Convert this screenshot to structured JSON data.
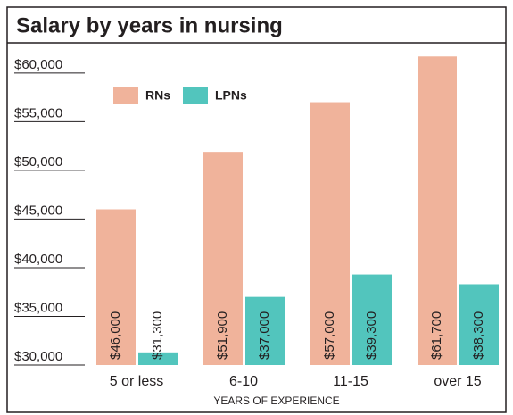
{
  "chart_data": {
    "type": "bar",
    "title": "Salary by years in nursing",
    "x_label": "YEARS OF EXPERIENCE",
    "categories": [
      "5 or less",
      "6-10",
      "11-15",
      "over 15"
    ],
    "series": [
      {
        "name": "RNs",
        "color": "#f0b39b",
        "values": [
          46000,
          51900,
          57000,
          61700
        ],
        "value_labels": [
          "$46,000",
          "$51,900",
          "$57,000",
          "$61,700"
        ]
      },
      {
        "name": "LPNs",
        "color": "#52c5bd",
        "values": [
          31300,
          37000,
          39300,
          38300
        ],
        "value_labels": [
          "$31,300",
          "$37,000",
          "$39,300",
          "$38,300"
        ]
      }
    ],
    "ylim": [
      30000,
      62000
    ],
    "yticks": [
      {
        "value": 30000,
        "label": "$30,000"
      },
      {
        "value": 35000,
        "label": "$35,000"
      },
      {
        "value": 40000,
        "label": "$40,000"
      },
      {
        "value": 45000,
        "label": "$45,000"
      },
      {
        "value": 50000,
        "label": "$50,000"
      },
      {
        "value": 55000,
        "label": "$55,000"
      },
      {
        "value": 60000,
        "label": "$60,000"
      }
    ],
    "legend": "top-left"
  }
}
